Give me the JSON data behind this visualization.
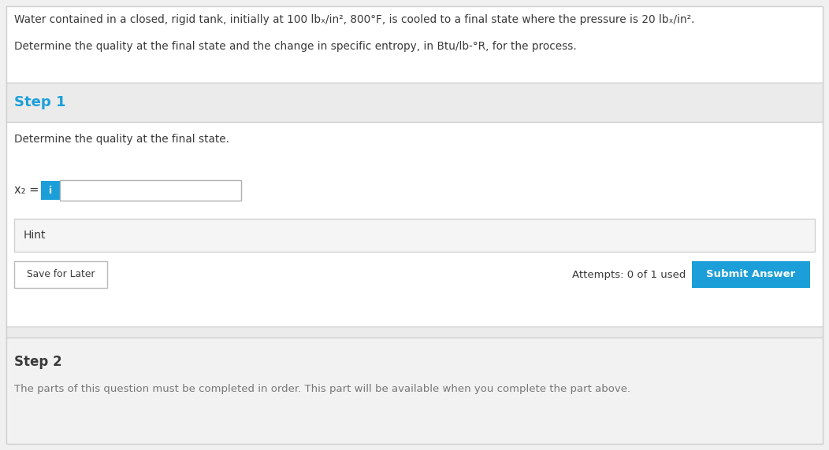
{
  "bg_color": "#f0f0f0",
  "outer_bg": "#ffffff",
  "blue_color": "#1c9fd8",
  "dark_text": "#3a3a3a",
  "gray_text": "#777777",
  "step_header_bg": "#ebebeb",
  "white_bg": "#ffffff",
  "step2_bg": "#f2f2f2",
  "hint_bg": "#f5f5f5",
  "hint_border": "#d0d0d0",
  "input_border": "#b0b0b0",
  "info_icon_bg": "#1c9fd8",
  "submit_btn_bg": "#1c9fd8",
  "submit_btn_text": "#ffffff",
  "save_btn_border": "#bbbbbb",
  "sep_color": "#d0d0d0",
  "line1": "Water contained in a closed, rigid tank, initially at 100 lbₓ/in², 800°F, is cooled to a final state where the pressure is 20 lbₓ/in².",
  "line2": "Determine the quality at the final state and the change in specific entropy, in Btu/lb-°R, for the process.",
  "step1_label": "Step 1",
  "step1_instruction": "Determine the quality at the final state.",
  "x2_label": "x₂ =",
  "hint_label": "Hint",
  "save_label": "Save for Later",
  "attempts_label": "Attempts: 0 of 1 used",
  "submit_label": "Submit Answer",
  "step2_label": "Step 2",
  "step2_desc": "The parts of this question must be completed in order. This part will be available when you complete the part above.",
  "figw": 10.52,
  "figh": 5.72,
  "dpi": 100
}
